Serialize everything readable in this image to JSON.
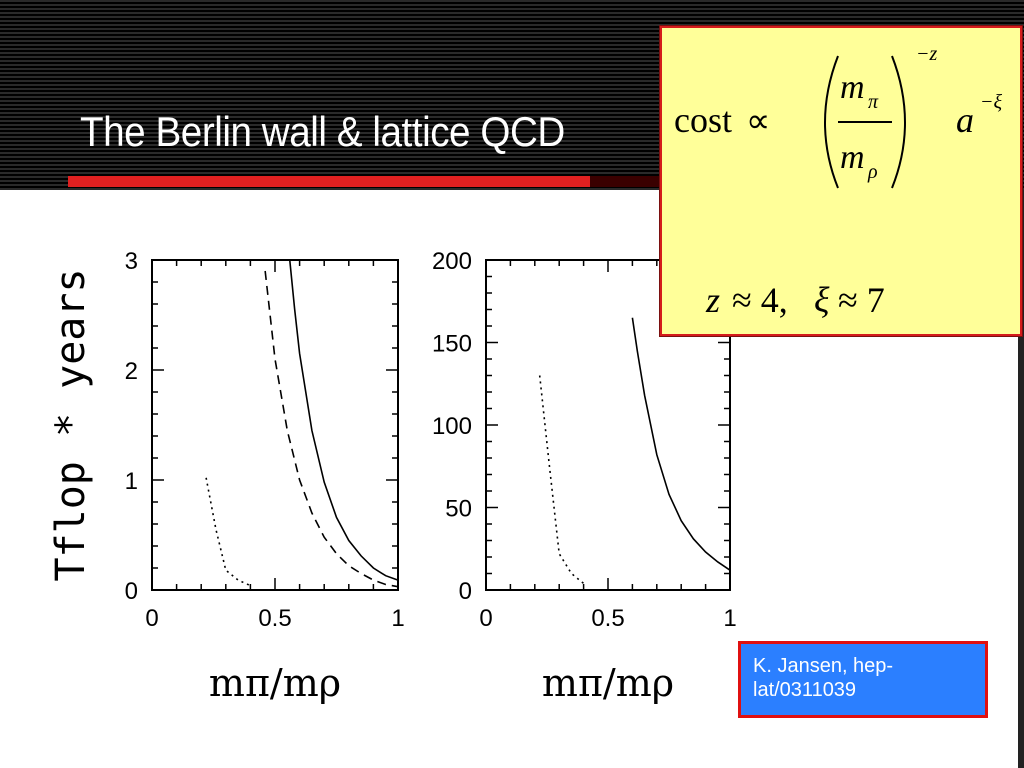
{
  "slide": {
    "title": "The Berlin wall & lattice QCD",
    "citation": "K. Jansen, hep-lat/0311039"
  },
  "formula": {
    "cost": "cost",
    "propto": "∝",
    "m": "m",
    "pi": "π",
    "rho": "ρ",
    "exp_z": "−z",
    "a": "a",
    "exp_xi": "−ξ",
    "params_z": "z",
    "params_mid": "≈ 4,",
    "params_xi": "ξ",
    "params_end": "≈ 7"
  },
  "chart_data": [
    {
      "type": "line",
      "ylabel": "Tflop * years",
      "xlabel": "mπ/mρ",
      "xlim": [
        0,
        1
      ],
      "ylim": [
        0,
        3
      ],
      "xticks": [
        {
          "v": 0,
          "label": "0"
        },
        {
          "v": 0.5,
          "label": "0.5"
        },
        {
          "v": 1,
          "label": "1"
        }
      ],
      "yticks": [
        {
          "v": 0,
          "label": "0"
        },
        {
          "v": 1,
          "label": "1"
        },
        {
          "v": 2,
          "label": "2"
        },
        {
          "v": 3,
          "label": "3"
        }
      ],
      "series": [
        {
          "style": "solid",
          "x": [
            0.56,
            0.58,
            0.6,
            0.65,
            0.7,
            0.75,
            0.8,
            0.85,
            0.9,
            0.95,
            1.0
          ],
          "y": [
            3.0,
            2.55,
            2.15,
            1.45,
            0.98,
            0.66,
            0.45,
            0.31,
            0.2,
            0.13,
            0.09
          ]
        },
        {
          "style": "dashed",
          "x": [
            0.46,
            0.5,
            0.55,
            0.6,
            0.65,
            0.7,
            0.75,
            0.8,
            0.85,
            0.9,
            0.95,
            1.0
          ],
          "y": [
            2.9,
            2.1,
            1.45,
            1.0,
            0.7,
            0.48,
            0.33,
            0.22,
            0.15,
            0.09,
            0.05,
            0.03
          ]
        },
        {
          "style": "dotted",
          "x": [
            0.22,
            0.26,
            0.3,
            0.35,
            0.4
          ],
          "y": [
            1.02,
            0.55,
            0.18,
            0.09,
            0.04
          ]
        }
      ]
    },
    {
      "type": "line",
      "xlabel": "mπ/mρ",
      "xlim": [
        0,
        1
      ],
      "ylim": [
        0,
        200
      ],
      "xticks": [
        {
          "v": 0,
          "label": "0"
        },
        {
          "v": 0.5,
          "label": "0.5"
        },
        {
          "v": 1,
          "label": "1"
        }
      ],
      "yticks": [
        {
          "v": 0,
          "label": "0"
        },
        {
          "v": 50,
          "label": "50"
        },
        {
          "v": 100,
          "label": "100"
        },
        {
          "v": 150,
          "label": "150"
        },
        {
          "v": 200,
          "label": "200"
        }
      ],
      "series": [
        {
          "style": "solid",
          "x": [
            0.6,
            0.62,
            0.65,
            0.7,
            0.75,
            0.8,
            0.85,
            0.9,
            0.95,
            1.0
          ],
          "y": [
            165,
            145,
            118,
            82,
            58,
            42,
            31,
            23,
            17,
            12
          ]
        },
        {
          "style": "dotted",
          "x": [
            0.22,
            0.26,
            0.3,
            0.35,
            0.4
          ],
          "y": [
            130,
            75,
            22,
            10,
            4
          ]
        }
      ]
    }
  ]
}
